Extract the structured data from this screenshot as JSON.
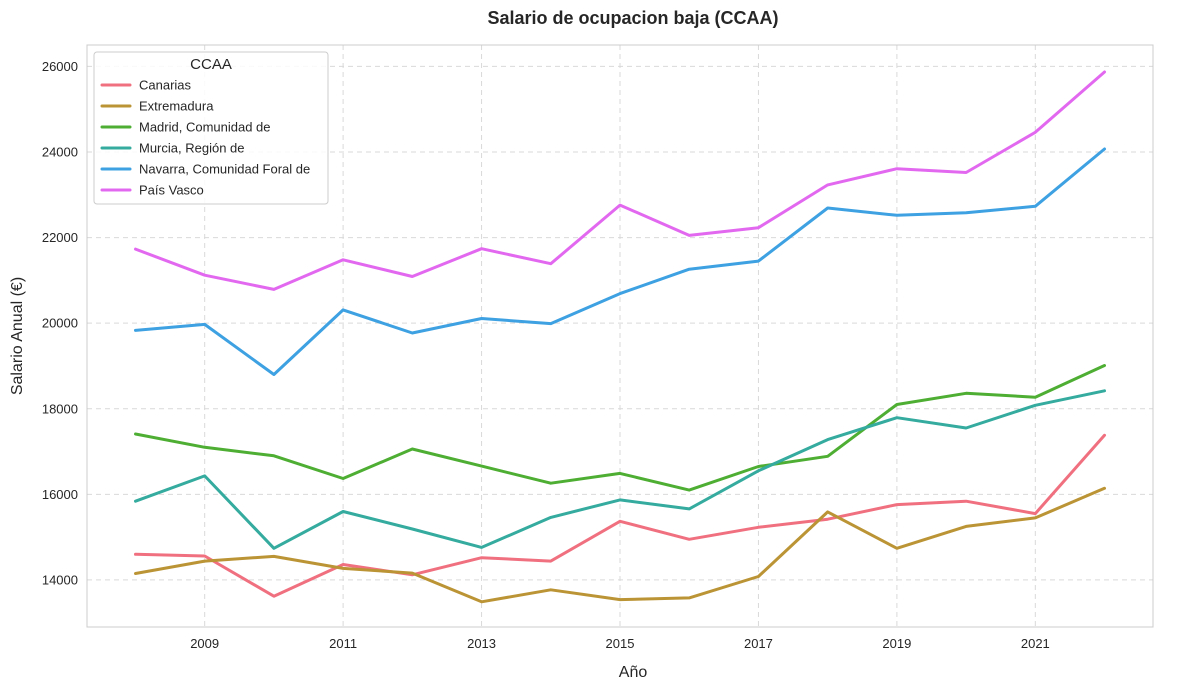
{
  "chart_data": {
    "type": "line",
    "title": "Salario de ocupacion baja (CCAA)",
    "xlabel": "Año",
    "ylabel": "Salario Anual (€)",
    "x": [
      2008,
      2009,
      2010,
      2011,
      2012,
      2013,
      2014,
      2015,
      2016,
      2017,
      2018,
      2019,
      2020,
      2021,
      2022
    ],
    "xticks": [
      "2009",
      "2011",
      "2013",
      "2015",
      "2017",
      "2019",
      "2021"
    ],
    "yticks": [
      "14000",
      "16000",
      "18000",
      "20000",
      "22000",
      "24000",
      "26000"
    ],
    "xlim": [
      2007.3,
      2022.7
    ],
    "ylim": [
      12900,
      26500
    ],
    "grid": true,
    "legend": {
      "title": "CCAA",
      "placement": "upper-left"
    },
    "series": [
      {
        "name": "Canarias",
        "color": "#f07080",
        "values": [
          14600,
          14560,
          13620,
          14360,
          14120,
          14520,
          14440,
          15370,
          14950,
          15230,
          15420,
          15760,
          15840,
          15550,
          17380
        ]
      },
      {
        "name": "Extremadura",
        "color": "#bb9435",
        "values": [
          14150,
          14440,
          14550,
          14270,
          14160,
          13490,
          13770,
          13540,
          13580,
          14080,
          15590,
          14740,
          15250,
          15450,
          16140
        ]
      },
      {
        "name": "Madrid, Comunidad de",
        "color": "#4eae33",
        "values": [
          17410,
          17100,
          16900,
          16370,
          17060,
          16660,
          16260,
          16490,
          16100,
          16650,
          16890,
          18100,
          18360,
          18270,
          19010
        ]
      },
      {
        "name": "Murcia, Región de",
        "color": "#34ab9e",
        "values": [
          15840,
          16430,
          14740,
          15600,
          15190,
          14760,
          15460,
          15870,
          15660,
          16550,
          17280,
          17790,
          17550,
          18080,
          18420
        ]
      },
      {
        "name": "Navarra, Comunidad Foral de",
        "color": "#3da1e2",
        "values": [
          19830,
          19970,
          18800,
          20310,
          19770,
          20110,
          19990,
          20690,
          21260,
          21450,
          22690,
          22520,
          22580,
          22730,
          24070
        ]
      },
      {
        "name": "País Vasco",
        "color": "#e268f0",
        "values": [
          21730,
          21120,
          20790,
          21480,
          21090,
          21740,
          21390,
          22760,
          22050,
          22230,
          23230,
          23610,
          23520,
          24460,
          25870
        ]
      }
    ]
  }
}
